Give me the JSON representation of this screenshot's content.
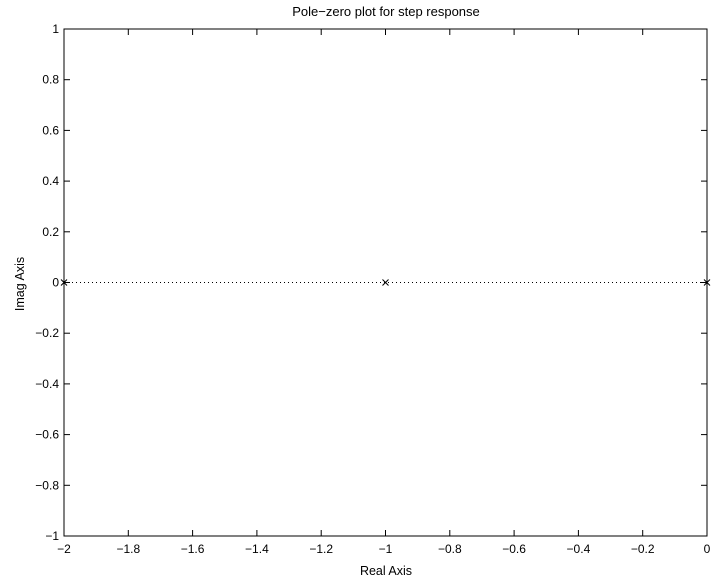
{
  "chart_data": {
    "type": "scatter",
    "title": "Pole−zero plot for step response",
    "xlabel": "Real Axis",
    "ylabel": "Imag Axis",
    "xlim": [
      -2,
      0
    ],
    "ylim": [
      -1,
      1
    ],
    "grid": false,
    "legend": "none",
    "xticks": [
      -2,
      -1.8,
      -1.6,
      -1.4,
      -1.2,
      -1,
      -0.8,
      -0.6,
      -0.4,
      -0.2,
      0
    ],
    "xtick_labels": [
      "−2",
      "−1.8",
      "−1.6",
      "−1.4",
      "−1.2",
      "−1",
      "−0.8",
      "−0.6",
      "−0.4",
      "−0.2",
      "0"
    ],
    "yticks": [
      -1,
      -0.8,
      -0.6,
      -0.4,
      -0.2,
      0,
      0.2,
      0.4,
      0.6,
      0.8,
      1
    ],
    "ytick_labels": [
      "−1",
      "−0.8",
      "−0.6",
      "−0.4",
      "−0.2",
      "0",
      "0.2",
      "0.4",
      "0.6",
      "0.8",
      "1"
    ],
    "series": [
      {
        "marker": "x",
        "x": [
          -2,
          -1,
          0
        ],
        "y": [
          0,
          0,
          0
        ]
      }
    ],
    "reference_lines": [
      {
        "orientation": "horizontal",
        "y": 0,
        "style": "dotted"
      }
    ],
    "colors": {
      "axes": "#000000",
      "marker": "#000000",
      "background": "#ffffff"
    }
  }
}
